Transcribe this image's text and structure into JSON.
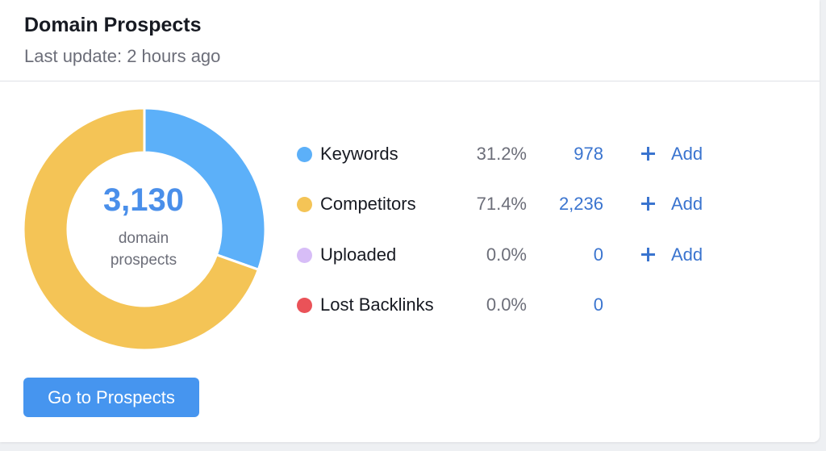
{
  "widget": {
    "title": "Domain Prospects",
    "subtitle": "Last update: 2 hours ago"
  },
  "summary": {
    "total": "3,130",
    "total_label_line1": "domain",
    "total_label_line2": "prospects"
  },
  "sources": [
    {
      "label": "Keywords",
      "percent": "31.2%",
      "count": "978",
      "add_label": "Add",
      "color": "#5cb0f9"
    },
    {
      "label": "Competitors",
      "percent": "71.4%",
      "count": "2,236",
      "add_label": "Add",
      "color": "#f4c456"
    },
    {
      "label": "Uploaded",
      "percent": "0.0%",
      "count": "0",
      "add_label": "Add",
      "color": "#d7bdf7"
    },
    {
      "label": "Lost Backlinks",
      "percent": "0.0%",
      "count": "0",
      "color": "#ea5258"
    }
  ],
  "chart_data": {
    "type": "pie",
    "variant": "donut",
    "categories": [
      "Keywords",
      "Competitors",
      "Uploaded",
      "Lost Backlinks"
    ],
    "values": [
      978,
      2236,
      0,
      0
    ],
    "colors": [
      "#5cb0f9",
      "#f4c456",
      "#d7bdf7",
      "#ea5258"
    ],
    "center_value": "3,130"
  },
  "actions": {
    "go_to_prospects": "Go to Prospects"
  }
}
